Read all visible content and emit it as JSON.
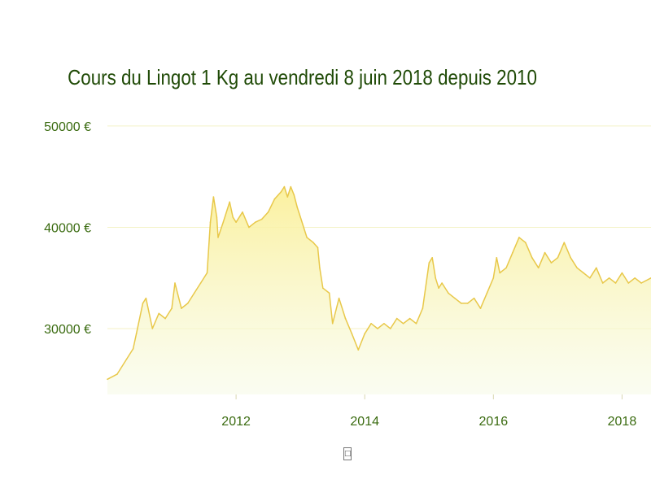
{
  "chart_data": {
    "type": "area",
    "title": "Cours du Lingot 1 Kg au vendredi 8 juin 2018 depuis 2010",
    "xlabel": "",
    "ylabel": "",
    "x_ticks": [
      "2012",
      "2014",
      "2016",
      "2018"
    ],
    "x_tick_values": [
      2012,
      2014,
      2016,
      2018
    ],
    "y_ticks": [
      "30000 €",
      "40000 €",
      "50000 €"
    ],
    "y_tick_values": [
      30000,
      40000,
      50000
    ],
    "xlim": [
      2010.0,
      2018.45
    ],
    "ylim": [
      23500,
      52000
    ],
    "grid": true,
    "legend": "none",
    "colors": {
      "line": "#e8c84a",
      "fill_top": "#fbf09a",
      "fill_bottom": "#f6fbe8",
      "grid": "#f4f2c6",
      "title": "#1f4a06",
      "tick": "#3a6b10"
    },
    "series": [
      {
        "x": [
          2010.0,
          2010.15,
          2010.3,
          2010.4,
          2010.45,
          2010.55,
          2010.6,
          2010.7,
          2010.8,
          2010.9,
          2011.0,
          2011.05,
          2011.15,
          2011.25,
          2011.35,
          2011.45,
          2011.55,
          2011.6,
          2011.65,
          2011.7,
          2011.72,
          2011.8,
          2011.9,
          2011.95,
          2012.0,
          2012.1,
          2012.2,
          2012.3,
          2012.4,
          2012.5,
          2012.6,
          2012.7,
          2012.75,
          2012.8,
          2012.85,
          2012.9,
          2012.95,
          2013.0,
          2013.1,
          2013.2,
          2013.27,
          2013.3,
          2013.35,
          2013.45,
          2013.5,
          2013.6,
          2013.7,
          2013.8,
          2013.9,
          2014.0,
          2014.1,
          2014.2,
          2014.3,
          2014.4,
          2014.5,
          2014.6,
          2014.7,
          2014.8,
          2014.9,
          2015.0,
          2015.05,
          2015.1,
          2015.15,
          2015.2,
          2015.3,
          2015.4,
          2015.5,
          2015.6,
          2015.7,
          2015.8,
          2015.9,
          2016.0,
          2016.05,
          2016.1,
          2016.2,
          2016.3,
          2016.4,
          2016.5,
          2016.6,
          2016.7,
          2016.8,
          2016.9,
          2017.0,
          2017.1,
          2017.2,
          2017.3,
          2017.4,
          2017.5,
          2017.6,
          2017.7,
          2017.8,
          2017.9,
          2018.0,
          2018.1,
          2018.2,
          2018.3,
          2018.45
        ],
        "values": [
          25000,
          25500,
          27000,
          28000,
          29500,
          32500,
          33000,
          30000,
          31500,
          31000,
          32000,
          34500,
          32000,
          32500,
          33500,
          34500,
          35500,
          40500,
          43000,
          41000,
          39000,
          40500,
          42500,
          41000,
          40500,
          41500,
          40000,
          40500,
          40800,
          41500,
          42800,
          43500,
          44000,
          43000,
          44000,
          43200,
          42000,
          41000,
          39000,
          38500,
          38000,
          36000,
          34000,
          33500,
          30500,
          33000,
          31000,
          29500,
          27900,
          29500,
          30500,
          30000,
          30500,
          30000,
          31000,
          30500,
          31000,
          30500,
          32000,
          36500,
          37000,
          35000,
          34000,
          34500,
          33500,
          33000,
          32500,
          32500,
          33000,
          32000,
          33500,
          35000,
          37000,
          35500,
          36000,
          37500,
          39000,
          38500,
          37000,
          36000,
          37500,
          36500,
          37000,
          38500,
          37000,
          36000,
          35500,
          35000,
          36000,
          34500,
          35000,
          34500,
          35500,
          34500,
          35000,
          34500,
          35000
        ]
      }
    ]
  },
  "footer": {
    "glyph": "□"
  }
}
